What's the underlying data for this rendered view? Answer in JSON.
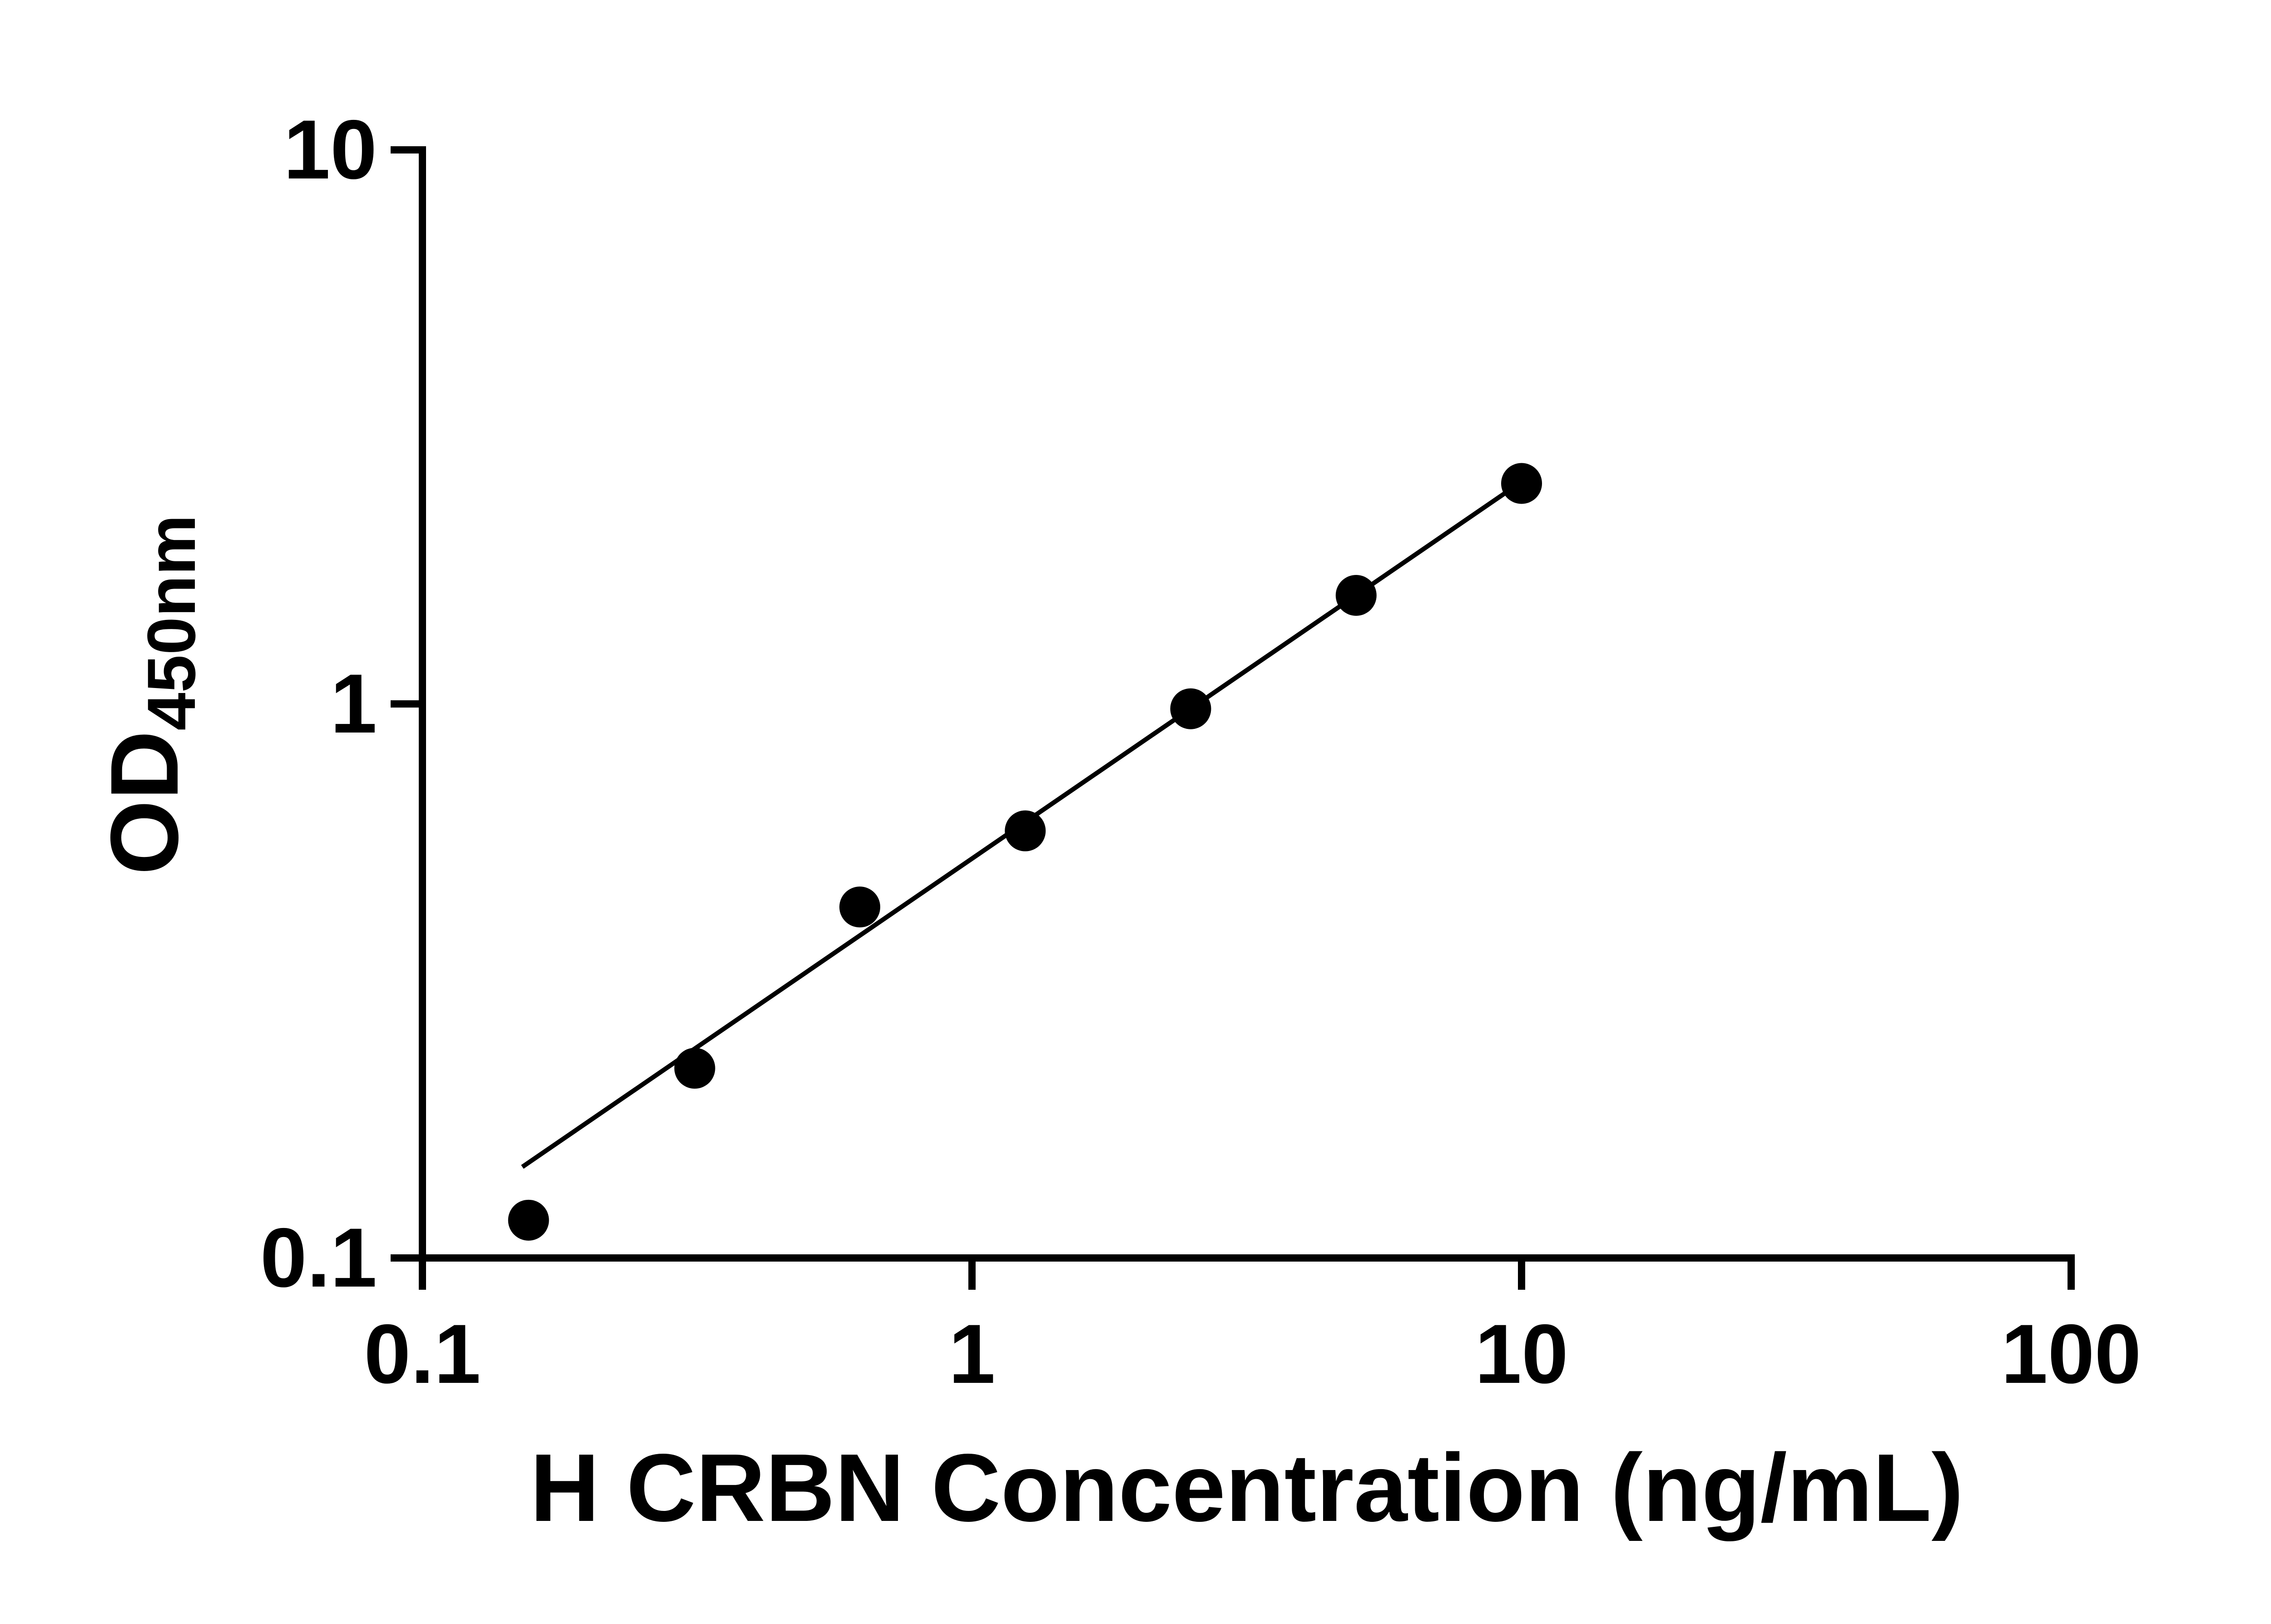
{
  "figure": {
    "background": "#ffffff",
    "ink": "#000000"
  },
  "chart_data": {
    "type": "scatter",
    "title": "",
    "xlabel": "H CRBN Concentration (ng/mL)",
    "ylabel": "OD450nm",
    "ylabel_main": "OD",
    "ylabel_sub": "450nm",
    "x_scale": "log",
    "y_scale": "log",
    "xlim": [
      0.1,
      100
    ],
    "ylim": [
      0.1,
      10
    ],
    "grid": false,
    "legend": "none",
    "x_ticks": [
      0.1,
      1,
      10,
      100
    ],
    "x_tick_labels": [
      "0.1",
      "1",
      "10",
      "100"
    ],
    "y_ticks": [
      10,
      1,
      0.1
    ],
    "y_tick_labels": [
      "10",
      "1",
      "0.1"
    ],
    "points": [
      {
        "x": 0.156,
        "y": 0.117
      },
      {
        "x": 0.313,
        "y": 0.22
      },
      {
        "x": 0.625,
        "y": 0.43
      },
      {
        "x": 1.25,
        "y": 0.59
      },
      {
        "x": 2.5,
        "y": 0.98
      },
      {
        "x": 5,
        "y": 1.57
      },
      {
        "x": 10,
        "y": 2.5
      }
    ],
    "trendline": {
      "x_start": 0.152,
      "y_start": 0.146,
      "x_end": 10.25,
      "y_end": 2.56
    },
    "marker": {
      "shape": "circle",
      "color": "#000000"
    }
  }
}
